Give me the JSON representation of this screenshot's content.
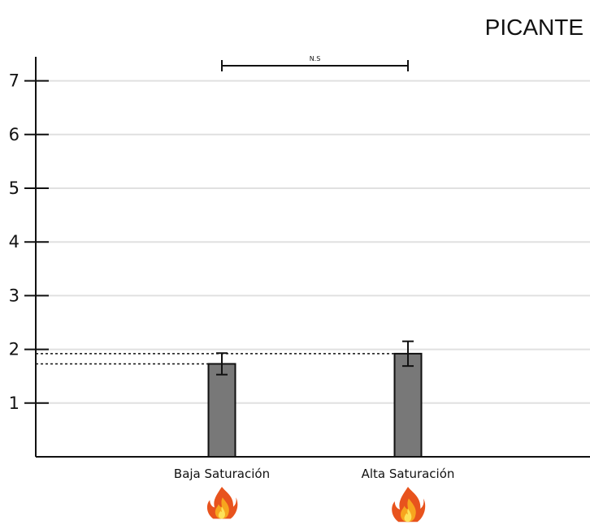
{
  "chart_data": {
    "type": "bar",
    "title": "PICANTE",
    "xlabel": "",
    "ylabel": "",
    "categories": [
      "Baja Saturación",
      "Alta Saturación"
    ],
    "values": [
      1.73,
      1.92
    ],
    "errors": [
      0.2,
      0.23
    ],
    "ylim": [
      0,
      7.5
    ],
    "yticks": [
      1,
      2,
      3,
      4,
      5,
      6,
      7
    ],
    "grid": true,
    "bar_color": "#787878",
    "significance": {
      "label": "N.S",
      "between": [
        "Baja Saturación",
        "Alta Saturación"
      ]
    },
    "category_icons": [
      "fire-icon",
      "fire-icon"
    ]
  }
}
